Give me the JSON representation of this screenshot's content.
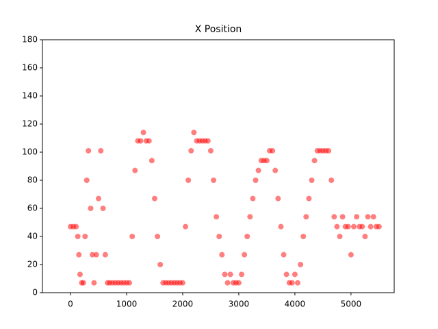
{
  "chart_data": {
    "type": "scatter",
    "title": "X Position",
    "color": "#ff0000",
    "x": [
      0,
      50,
      100,
      130,
      150,
      170,
      200,
      230,
      260,
      290,
      320,
      360,
      390,
      420,
      460,
      500,
      540,
      580,
      620,
      660,
      700,
      750,
      800,
      850,
      900,
      950,
      1000,
      1050,
      1100,
      1150,
      1200,
      1250,
      1300,
      1350,
      1400,
      1450,
      1500,
      1550,
      1600,
      1650,
      1700,
      1750,
      1800,
      1850,
      1900,
      1950,
      2000,
      2050,
      2100,
      2150,
      2200,
      2250,
      2300,
      2350,
      2400,
      2450,
      2500,
      2550,
      2600,
      2650,
      2700,
      2750,
      2800,
      2850,
      2900,
      2950,
      3000,
      3050,
      3100,
      3150,
      3200,
      3250,
      3300,
      3350,
      3400,
      3450,
      3500,
      3550,
      3600,
      3650,
      3700,
      3750,
      3800,
      3850,
      3900,
      3950,
      4000,
      4050,
      4100,
      4150,
      4200,
      4250,
      4300,
      4350,
      4400,
      4450,
      4500,
      4550,
      4600,
      4650,
      4700,
      4750,
      4800,
      4850,
      4900,
      4950,
      5000,
      5050,
      5100,
      5150,
      5200,
      5250,
      5300,
      5350,
      5400,
      5450,
      5500
    ],
    "y": [
      47,
      47,
      47,
      40,
      27,
      13,
      7,
      7,
      40,
      80,
      101,
      60,
      27,
      7,
      27,
      67,
      101,
      60,
      27,
      7,
      7,
      7,
      7,
      7,
      7,
      7,
      7,
      7,
      40,
      87,
      108,
      108,
      114,
      108,
      108,
      94,
      67,
      40,
      20,
      7,
      7,
      7,
      7,
      7,
      7,
      7,
      7,
      47,
      80,
      101,
      114,
      108,
      108,
      108,
      108,
      108,
      101,
      80,
      54,
      40,
      27,
      13,
      7,
      13,
      7,
      7,
      7,
      13,
      27,
      40,
      54,
      67,
      80,
      87,
      94,
      94,
      94,
      101,
      101,
      87,
      67,
      47,
      27,
      13,
      7,
      7,
      13,
      7,
      20,
      40,
      54,
      67,
      80,
      94,
      101,
      101,
      101,
      101,
      101,
      80,
      54,
      47,
      40,
      54,
      47,
      47,
      27,
      47,
      54,
      47,
      47,
      40,
      54,
      47,
      54,
      47,
      47
    ],
    "xlim": [
      -500,
      5770
    ],
    "ylim": [
      0,
      180
    ],
    "xticks": [
      0,
      1000,
      2000,
      3000,
      4000,
      5000
    ],
    "yticks": [
      0,
      20,
      40,
      60,
      80,
      100,
      120,
      140,
      160,
      180
    ]
  }
}
